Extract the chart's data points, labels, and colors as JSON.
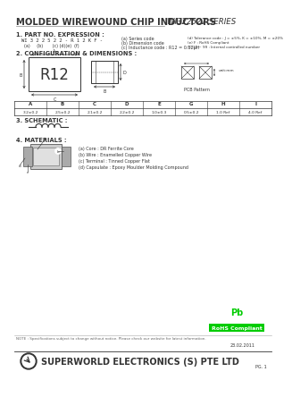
{
  "title": "MOLDED WIREWOUND CHIP INDUCTORS",
  "series": "WI322522 SERIES",
  "bg_color": "#ffffff",
  "text_color": "#333333",
  "section1_title": "1. PART NO. EXPRESSION :",
  "part_expression": "WI 3 2 2 5 2 2 - R 1 2 K F -",
  "part_labels_line": "  (a)     (b)       (c) (d)(e)  (f)",
  "part_desc_a": "(a) Series code",
  "part_desc_b": "(b) Dimension code",
  "part_desc_c": "(c) Inductance code : R12 = 0.12μH",
  "part_desc_d": "(d) Tolerance code : J = ±5%, K = ±10%, M = ±20%",
  "part_desc_e": "(e) F : RoHS Compliant",
  "part_desc_f": "(f) 11 ~ 99 : Internal controlled number",
  "section2_title": "2. CONFIGURATION & DIMENSIONS :",
  "dim_label": "R12",
  "dim_table_headers": [
    "A",
    "B",
    "C",
    "D",
    "E",
    "G",
    "H",
    "I"
  ],
  "dim_table_values": [
    "3.2±0.2",
    "2.5±0.2",
    "2.1±0.2",
    "2.2±0.2",
    "1.0±0.3",
    "0.5±0.2",
    "1.0 Ref",
    "4.0 Ref"
  ],
  "unit_note": "unit:mm",
  "section3_title": "3. SCHEMATIC :",
  "section4_title": "4. MATERIALS :",
  "mat_a": "(a) Core : DR Ferrite Core",
  "mat_b": "(b) Wire : Enamelled Copper Wire",
  "mat_c": "(c) Terminal : Tinned Copper Flat",
  "mat_d": "(d) Capsulate : Epoxy Moulder Molding Compound",
  "note": "NOTE : Specifications subject to change without notice. Please check our website for latest information.",
  "company": "SUPERWORLD ELECTRONICS (S) PTE LTD",
  "date": "23.02.2011",
  "page": "PG. 1",
  "rohs_green": "#00cc00",
  "rohs_text": "RoHS Compliant",
  "pb_circle_color": "#ffffff"
}
